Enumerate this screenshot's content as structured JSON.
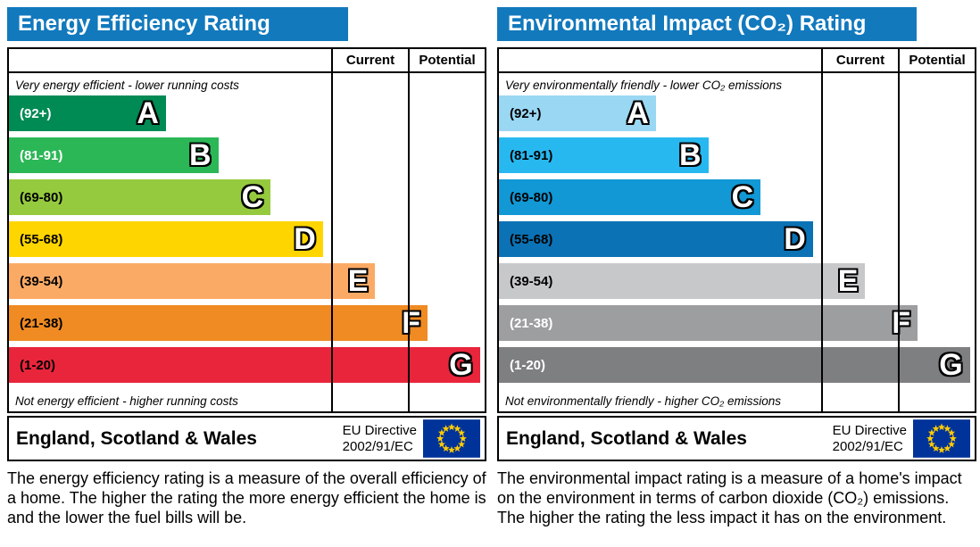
{
  "accent_colors": {
    "header_blue": "#1279bd",
    "eu_flag_blue": "#003399",
    "eu_star_yellow": "#ffcc00"
  },
  "panels": [
    {
      "title": "Energy Efficiency Rating",
      "columns": [
        "Current",
        "Potential"
      ],
      "top_caption": "Very energy efficient - lower running costs",
      "bottom_caption": "Not energy efficient - higher running costs",
      "bands": [
        {
          "range": "(92+)",
          "letter": "A",
          "color": "#008a54",
          "label_color": "#ffffff",
          "width_pct": 33
        },
        {
          "range": "(81-91)",
          "letter": "B",
          "color": "#2cb757",
          "label_color": "#ffffff",
          "width_pct": 44
        },
        {
          "range": "(69-80)",
          "letter": "C",
          "color": "#95ca3f",
          "label_color": "#000000",
          "width_pct": 55
        },
        {
          "range": "(55-68)",
          "letter": "D",
          "color": "#ffd500",
          "label_color": "#000000",
          "width_pct": 66
        },
        {
          "range": "(39-54)",
          "letter": "E",
          "color": "#fbaa65",
          "label_color": "#000000",
          "width_pct": 77
        },
        {
          "range": "(21-38)",
          "letter": "F",
          "color": "#ef8b22",
          "label_color": "#000000",
          "width_pct": 88
        },
        {
          "range": "(1-20)",
          "letter": "G",
          "color": "#e9253c",
          "label_color": "#000000",
          "width_pct": 99
        }
      ],
      "footer": {
        "region": "England, Scotland & Wales",
        "directive_line1": "EU Directive",
        "directive_line2": "2002/91/EC",
        "flag_icon": "eu-flag"
      },
      "description": "The energy efficiency rating is a measure of the overall efficiency of a home. The higher the rating the more energy efficient the home is and the lower the fuel bills will be."
    },
    {
      "title": "Environmental Impact (CO₂) Rating",
      "columns": [
        "Current",
        "Potential"
      ],
      "top_caption": "Very environmentally friendly - lower CO₂ emissions",
      "bottom_caption": "Not environmentally friendly - higher CO₂ emissions",
      "bands": [
        {
          "range": "(92+)",
          "letter": "A",
          "color": "#9ad7f3",
          "label_color": "#000000",
          "width_pct": 33
        },
        {
          "range": "(81-91)",
          "letter": "B",
          "color": "#28b8f0",
          "label_color": "#000000",
          "width_pct": 44
        },
        {
          "range": "(69-80)",
          "letter": "C",
          "color": "#1198d5",
          "label_color": "#000000",
          "width_pct": 55
        },
        {
          "range": "(55-68)",
          "letter": "D",
          "color": "#0b72b5",
          "label_color": "#000000",
          "width_pct": 66
        },
        {
          "range": "(39-54)",
          "letter": "E",
          "color": "#c7c8ca",
          "label_color": "#000000",
          "width_pct": 77
        },
        {
          "range": "(21-38)",
          "letter": "F",
          "color": "#9d9ea0",
          "label_color": "#ffffff",
          "width_pct": 88
        },
        {
          "range": "(1-20)",
          "letter": "G",
          "color": "#7e7f81",
          "label_color": "#ffffff",
          "width_pct": 99
        }
      ],
      "footer": {
        "region": "England, Scotland & Wales",
        "directive_line1": "EU Directive",
        "directive_line2": "2002/91/EC",
        "flag_icon": "eu-flag"
      },
      "description": "The environmental impact rating is a measure of a home's impact on the environment in terms of carbon dioxide (CO₂) emissions. The higher the rating the less impact it has on the environment."
    }
  ],
  "chart_data": [
    {
      "type": "bar",
      "title": "Energy Efficiency Rating",
      "columns": [
        "Current",
        "Potential"
      ],
      "categories": [
        "A (92+)",
        "B (81-91)",
        "C (69-80)",
        "D (55-68)",
        "E (39-54)",
        "F (21-38)",
        "G (1-20)"
      ],
      "values": [
        33,
        44,
        55,
        66,
        77,
        88,
        99
      ],
      "values_note": "fixed staircase band lengths as % of band area; Current and Potential cells are empty in this image",
      "top_label": "Very energy efficient - lower running costs",
      "bottom_label": "Not energy efficient - higher running costs",
      "region": "England, Scotland & Wales",
      "directive": "EU Directive 2002/91/EC",
      "legend_position": "none",
      "grid": false
    },
    {
      "type": "bar",
      "title": "Environmental Impact (CO₂) Rating",
      "columns": [
        "Current",
        "Potential"
      ],
      "categories": [
        "A (92+)",
        "B (81-91)",
        "C (69-80)",
        "D (55-68)",
        "E (39-54)",
        "F (21-38)",
        "G (1-20)"
      ],
      "values": [
        33,
        44,
        55,
        66,
        77,
        88,
        99
      ],
      "values_note": "fixed staircase band lengths as % of band area; Current and Potential cells are empty in this image",
      "top_label": "Very environmentally friendly - lower CO₂ emissions",
      "bottom_label": "Not environmentally friendly - higher CO₂ emissions",
      "region": "England, Scotland & Wales",
      "directive": "EU Directive 2002/91/EC",
      "legend_position": "none",
      "grid": false
    }
  ]
}
